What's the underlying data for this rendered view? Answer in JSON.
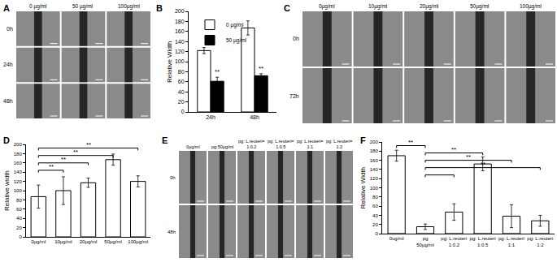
{
  "chart_data": [
    {
      "panel_label": "B",
      "type": "bar",
      "y_label": "Relative Width",
      "categories": [
        "24h",
        "48h"
      ],
      "series": [
        {
          "name": "0 µg/ml",
          "color": "#ffffff",
          "values": [
            122,
            167
          ],
          "errors": [
            6,
            14
          ]
        },
        {
          "name": "50 µg/ml",
          "color": "#000000",
          "values": [
            61,
            72
          ],
          "errors": [
            8,
            4
          ]
        }
      ],
      "ylim": [
        0,
        200
      ],
      "yticks": [
        0,
        20,
        40,
        60,
        80,
        100,
        120,
        140,
        160,
        180,
        200
      ],
      "grid": false,
      "legend": "top left",
      "annotations": [
        {
          "category": "24h",
          "series": "50 µg/ml",
          "text": "**"
        },
        {
          "category": "48h",
          "series": "50 µg/ml",
          "text": "**"
        }
      ]
    },
    {
      "panel_label": "D",
      "type": "bar",
      "y_label": "Relative width",
      "categories": [
        "0µg/ml",
        "10µg/ml",
        "20µg/ml",
        "50µg/ml",
        "100µg/ml"
      ],
      "values": [
        87,
        100,
        117,
        167,
        120
      ],
      "errors": [
        25,
        30,
        10,
        12,
        12
      ],
      "color": "#ffffff",
      "ylim": [
        0,
        200
      ],
      "yticks": [
        0,
        20,
        40,
        60,
        80,
        100,
        120,
        140,
        160,
        180,
        200
      ],
      "grid": false,
      "comparisons": [
        {
          "from": 0,
          "to": 1,
          "label": "**"
        },
        {
          "from": 0,
          "to": 2,
          "label": "**"
        },
        {
          "from": 0,
          "to": 3,
          "label": "**"
        },
        {
          "from": 0,
          "to": 4,
          "label": "**"
        }
      ]
    },
    {
      "panel_label": "F",
      "type": "bar",
      "y_label": "Relative Width",
      "categories": [
        "0ug/ml",
        "pg",
        "pg: L.reuteri",
        "pg: L.reuteri",
        "pg: L.reuteri",
        "pg: L.reuteri"
      ],
      "category_sublabels": [
        null,
        "50µg/ml",
        "1:0.2",
        "1:0.5",
        "1:1",
        "1:2"
      ],
      "values": [
        170,
        15,
        47,
        152,
        38,
        28
      ],
      "errors": [
        12,
        6,
        18,
        15,
        25,
        12
      ],
      "color": "#ffffff",
      "ylim": [
        0,
        200
      ],
      "yticks": [
        0,
        20,
        40,
        60,
        80,
        100,
        120,
        140,
        160,
        180,
        200
      ],
      "grid": false,
      "comparisons": [
        {
          "from": 1,
          "to": 2
        },
        {
          "from": 1,
          "to": 5,
          "label": "**"
        },
        {
          "from": 1,
          "to": 4,
          "label": "**"
        },
        {
          "from": 1,
          "to": 3,
          "label": "**"
        },
        {
          "from": 0,
          "to": 1,
          "label": "**"
        }
      ]
    }
  ],
  "image_panels": [
    {
      "panel_label": "A",
      "columns": [
        "0 µg/ml",
        "50 µg/ml",
        "100µg/ml"
      ],
      "rows": [
        "0h",
        "24h",
        "48h"
      ]
    },
    {
      "panel_label": "C",
      "columns": [
        "0µg/ml",
        "10µg/ml",
        "20µg/ml",
        "50µg/ml",
        "100µg/ml"
      ],
      "rows": [
        "0h",
        "72h"
      ]
    },
    {
      "panel_label": "E",
      "columns": [
        "0µg/ml",
        "pg:50µg/ml",
        "pg: L.reuteri=1:0.2",
        "pg: L.reuteri=1:0.5",
        "pg: L.reuteri=1:1",
        "pg: L.reuteri=1:2"
      ],
      "rows": [
        "0h",
        "48h"
      ]
    }
  ]
}
